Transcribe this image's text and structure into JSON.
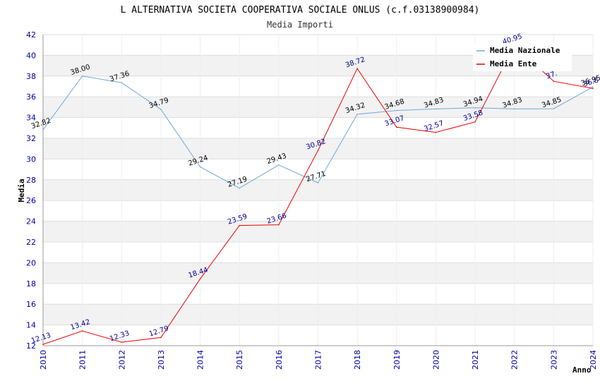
{
  "chart_data": {
    "type": "line",
    "title": "L ALTERNATIVA SOCIETA COOPERATIVA SOCIALE ONLUS (c.f.03138900984)",
    "subtitle": "Media Importi",
    "xlabel": "Anno",
    "ylabel": "Media",
    "ylim": [
      12,
      42
    ],
    "yticks": [
      12,
      14,
      16,
      18,
      20,
      22,
      24,
      26,
      28,
      30,
      32,
      34,
      36,
      38,
      40,
      42
    ],
    "categories": [
      "2010",
      "2011",
      "2012",
      "2013",
      "2014",
      "2015",
      "2016",
      "2017",
      "2018",
      "2019",
      "2020",
      "2021",
      "2022",
      "2023",
      "2024"
    ],
    "grid": true,
    "legend_position": "top-right",
    "series": [
      {
        "name": "Media Nazionale",
        "color": "#6fa8dc",
        "label_color": "#000000",
        "values": [
          32.82,
          38.0,
          37.36,
          34.79,
          29.24,
          27.19,
          29.43,
          27.71,
          34.32,
          34.68,
          34.83,
          34.94,
          34.83,
          34.85,
          36.95
        ],
        "labels": [
          "32.82",
          "38.00",
          "37.36",
          "34.79",
          "29.24",
          "27.19",
          "29.43",
          "27.71",
          "34.32",
          "34.68",
          "34.83",
          "34.94",
          "34.83",
          "34.85",
          "36.95"
        ]
      },
      {
        "name": "Media Ente",
        "color": "#ee0000",
        "label_color": "#000099",
        "values": [
          12.13,
          13.42,
          12.33,
          12.79,
          18.44,
          23.59,
          23.66,
          30.82,
          38.72,
          33.07,
          32.57,
          33.58,
          40.95,
          37.5,
          36.8
        ],
        "labels": [
          "12.13",
          "13.42",
          "12.33",
          "12.79",
          "18.44",
          "23.59",
          "23.66",
          "30.82",
          "38.72",
          "33.07",
          "32.57",
          "33.58",
          "40.95",
          "37.",
          "36.8"
        ]
      }
    ]
  }
}
